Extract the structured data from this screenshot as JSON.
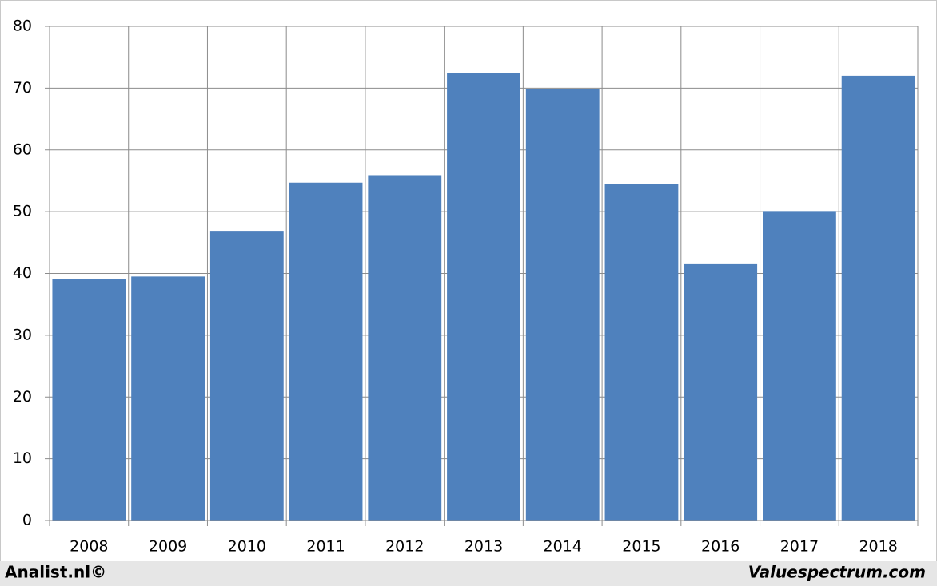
{
  "chart_data": {
    "type": "bar",
    "categories": [
      "2008",
      "2009",
      "2010",
      "2011",
      "2012",
      "2013",
      "2014",
      "2015",
      "2016",
      "2017",
      "2018"
    ],
    "values": [
      39.1,
      39.5,
      46.9,
      54.7,
      55.9,
      72.4,
      69.9,
      54.5,
      41.5,
      50.1,
      72.0
    ],
    "color": "#4f81bd",
    "ylim": [
      0,
      80
    ],
    "yticks": [
      0,
      10,
      20,
      30,
      40,
      50,
      60,
      70,
      80
    ],
    "grid": true
  },
  "footer": {
    "left": "Analist.nl©",
    "right": "Valuespectrum.com"
  }
}
